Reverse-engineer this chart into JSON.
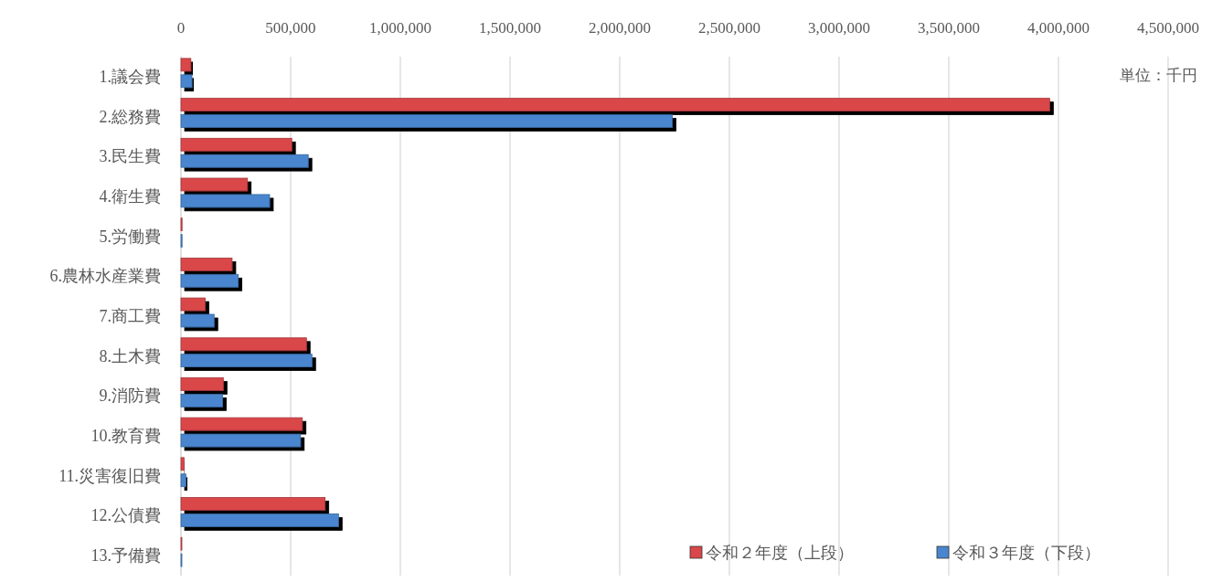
{
  "chart_data": {
    "type": "bar",
    "orientation": "horizontal",
    "categories": [
      "1.議会費",
      "2.総務費",
      "3.民生費",
      "4.衛生費",
      "5.労働費",
      "6.農林水産業費",
      "7.商工費",
      "8.土木費",
      "9.消防費",
      "10.教育費",
      "11.災害復旧費",
      "12.公債費",
      "13.予備費"
    ],
    "series": [
      {
        "name": "令和２年度（上段）",
        "color": "#d9474a",
        "values": [
          45000,
          3960000,
          505000,
          303000,
          5000,
          233000,
          110000,
          572000,
          193000,
          553000,
          14000,
          657000,
          3000
        ]
      },
      {
        "name": "令和３年度（下段）",
        "color": "#4a86cf",
        "values": [
          50000,
          2240000,
          580000,
          404000,
          5000,
          261000,
          151000,
          597000,
          190000,
          545000,
          22000,
          718000,
          3000
        ]
      }
    ],
    "xlim": [
      0,
      4500000
    ],
    "xticks": [
      {
        "value": 0,
        "label": "0"
      },
      {
        "value": 500000,
        "label": "500,000"
      },
      {
        "value": 1000000,
        "label": "1,000,000"
      },
      {
        "value": 1500000,
        "label": "1,500,000"
      },
      {
        "value": 2000000,
        "label": "2,000,000"
      },
      {
        "value": 2500000,
        "label": "2,500,000"
      },
      {
        "value": 3000000,
        "label": "3,000,000"
      },
      {
        "value": 3500000,
        "label": "3,500,000"
      },
      {
        "value": 4000000,
        "label": "4,000,000"
      },
      {
        "value": 4500000,
        "label": "4,500,000"
      }
    ],
    "grid": "x",
    "legend": "bottom right",
    "annotations": [
      "単位：千円"
    ]
  }
}
